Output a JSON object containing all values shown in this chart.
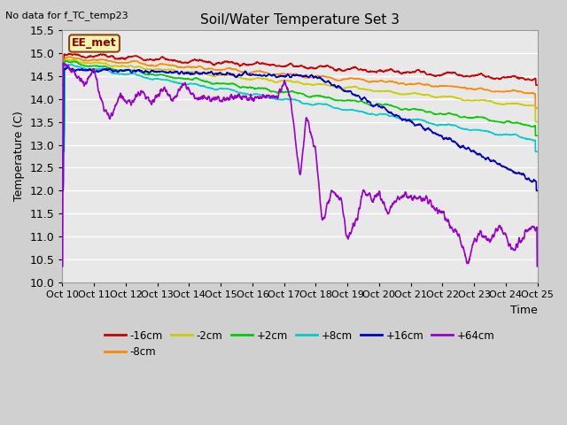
{
  "title": "Soil/Water Temperature Set 3",
  "no_data_text": "No data for f_TC_temp23",
  "ee_met_label": "EE_met",
  "ylabel": "Temperature (C)",
  "xlabel": "Time",
  "ylim": [
    10.0,
    15.5
  ],
  "yticks": [
    10.0,
    10.5,
    11.0,
    11.5,
    12.0,
    12.5,
    13.0,
    13.5,
    14.0,
    14.5,
    15.0,
    15.5
  ],
  "x_labels": [
    "Oct 10",
    "Oct 11",
    "Oct 12",
    "Oct 13",
    "Oct 14",
    "Oct 15",
    "Oct 16",
    "Oct 17",
    "Oct 18",
    "Oct 19",
    "Oct 20",
    "Oct 21",
    "Oct 22",
    "Oct 23",
    "Oct 24",
    "Oct 25"
  ],
  "series": [
    {
      "label": "-16cm",
      "color": "#cc0000"
    },
    {
      "label": "-8cm",
      "color": "#ff8800"
    },
    {
      "label": "-2cm",
      "color": "#cccc00"
    },
    {
      "label": "+2cm",
      "color": "#00cc00"
    },
    {
      "label": "+8cm",
      "color": "#00cccc"
    },
    {
      "label": "+16cm",
      "color": "#0000cc"
    },
    {
      "label": "+64cm",
      "color": "#9900cc"
    }
  ],
  "fig_bg": "#d0d0d0",
  "plot_bg": "#e8e8e8",
  "grid_color": "#ffffff",
  "figsize": [
    6.4,
    4.8
  ],
  "dpi": 100
}
